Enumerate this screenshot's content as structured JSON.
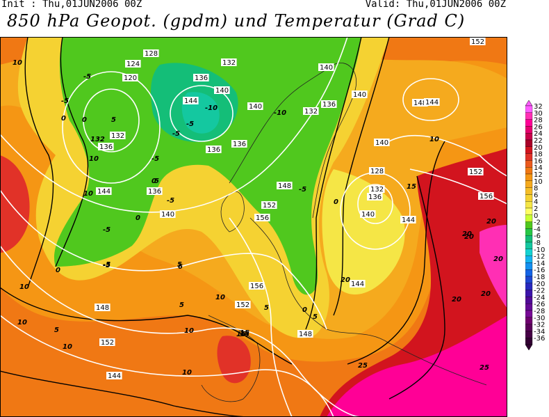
{
  "header": {
    "init": "Init : Thu,01JUN2006 00Z",
    "valid": "Valid: Thu,01JUN2006 00Z",
    "title": "850 hPa Geopot. (gpdm) und Temperatur (Grad C)"
  },
  "colorbar": {
    "labels": [
      "32",
      "30",
      "28",
      "26",
      "24",
      "22",
      "20",
      "18",
      "16",
      "14",
      "12",
      "10",
      "8",
      "6",
      "4",
      "2",
      "0",
      "-2",
      "-4",
      "-6",
      "-8",
      "-10",
      "-12",
      "-14",
      "-16",
      "-18",
      "-20",
      "-22",
      "-24",
      "-26",
      "-28",
      "-30",
      "-32",
      "-34",
      "-36"
    ],
    "colors": [
      "#ff5cff",
      "#ff2fb4",
      "#ff0096",
      "#e6006e",
      "#c8004b",
      "#aa0028",
      "#d2141e",
      "#e13228",
      "#eb5a1e",
      "#f07814",
      "#f59614",
      "#f5aa1e",
      "#f5be28",
      "#f5d232",
      "#f5e646",
      "#ffff64",
      "#c8ff32",
      "#50c81e",
      "#28c846",
      "#14be78",
      "#14c8a0",
      "#14d2d2",
      "#14b4f0",
      "#1490f0",
      "#1464e6",
      "#1e46d2",
      "#2828be",
      "#3c14aa",
      "#500a96",
      "#640a96",
      "#780a96",
      "#6e006e",
      "#5a005a",
      "#460046",
      "#320032"
    ]
  },
  "map": {
    "temperature_labels": [
      "10",
      "-5",
      "-5",
      "0",
      "5",
      "132",
      "10",
      "-5",
      "0",
      "5",
      "5",
      "10",
      "15",
      "10",
      "10",
      "20",
      "25",
      "25",
      "15",
      "20",
      "20",
      "20",
      "10",
      "5",
      "0",
      "-5",
      "-10",
      "-10",
      "-5",
      "-5",
      "-5",
      "-5",
      "0",
      "0",
      "0",
      "-5",
      "10",
      "5",
      "0",
      "-5",
      "10",
      "5",
      "10",
      "5",
      "15",
      "20",
      "15",
      "20",
      "20",
      "10",
      "6",
      "10"
    ],
    "geopotential_labels": [
      "128",
      "124",
      "120",
      "132",
      "136",
      "140",
      "132",
      "136",
      "140",
      "144",
      "136",
      "140",
      "144",
      "136",
      "140",
      "148",
      "156",
      "152",
      "156",
      "152",
      "148",
      "152",
      "148",
      "144",
      "144",
      "132",
      "128",
      "136",
      "140",
      "144",
      "148",
      "152",
      "156",
      "140",
      "136",
      "152",
      "144",
      "140",
      "136",
      "132"
    ]
  }
}
